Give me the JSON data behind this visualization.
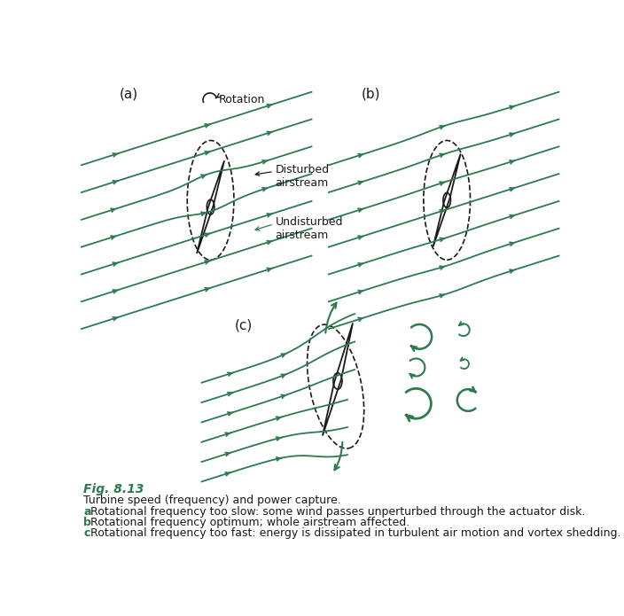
{
  "green_color": "#2d7a4f",
  "black_color": "#1a1a1a",
  "bg_color": "#ffffff",
  "fig_title": "Fig. 8.13",
  "caption_line1": "Turbine speed (frequency) and power capture.",
  "caption_a": "Rotational frequency too slow: some wind passes unperturbed through the actuator disk.",
  "caption_b": "Rotational frequency optimum; whole airstream affected.",
  "caption_c": "Rotational frequency too fast: energy is dissipated in turbulent air motion and vortex shedding.",
  "label_a": "(a)",
  "label_b": "(b)",
  "label_c": "(c)",
  "label_rotation": "Rotation",
  "label_disturbed": "Disturbed\nairstream",
  "label_undisturbed": "Undisturbed\nairstream",
  "line_slope": 0.32,
  "arrow_scale": 7,
  "line_lw": 1.3
}
